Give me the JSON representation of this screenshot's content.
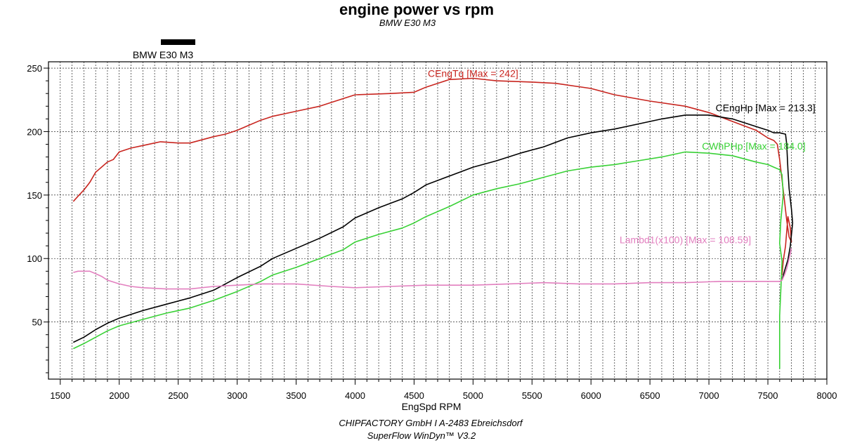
{
  "chart_data": {
    "type": "line",
    "title": "engine power vs rpm",
    "subtitle": "BMW E30 M3",
    "legend": {
      "entries": [
        "BMW E30 M3"
      ],
      "placement": "top-left"
    },
    "xlabel": "EngSpd RPM",
    "ylabel": "",
    "xlim": [
      1400,
      8000
    ],
    "ylim": [
      5,
      255
    ],
    "x_ticks": [
      1500,
      2000,
      2500,
      3000,
      3500,
      4000,
      4500,
      5000,
      5500,
      6000,
      6500,
      7000,
      7500,
      8000
    ],
    "y_ticks": [
      50,
      100,
      150,
      200,
      250
    ],
    "grid": true,
    "series": [
      {
        "name": "CEngTq [Max = 242]",
        "color": "#c8251f",
        "points": [
          [
            1610,
            145
          ],
          [
            1650,
            149
          ],
          [
            1700,
            154
          ],
          [
            1750,
            160
          ],
          [
            1800,
            168
          ],
          [
            1850,
            172
          ],
          [
            1900,
            176
          ],
          [
            1950,
            178
          ],
          [
            2000,
            184
          ],
          [
            2100,
            187
          ],
          [
            2200,
            189
          ],
          [
            2300,
            191
          ],
          [
            2350,
            192
          ],
          [
            2500,
            191
          ],
          [
            2600,
            191
          ],
          [
            2800,
            196
          ],
          [
            2900,
            198
          ],
          [
            3000,
            201
          ],
          [
            3100,
            205
          ],
          [
            3200,
            209
          ],
          [
            3300,
            212
          ],
          [
            3500,
            216
          ],
          [
            3700,
            220
          ],
          [
            3900,
            226
          ],
          [
            4000,
            229
          ],
          [
            4300,
            230
          ],
          [
            4500,
            231
          ],
          [
            4600,
            235
          ],
          [
            4700,
            238
          ],
          [
            4800,
            241
          ],
          [
            5000,
            242
          ],
          [
            5200,
            240
          ],
          [
            5500,
            239
          ],
          [
            5700,
            238
          ],
          [
            6000,
            234
          ],
          [
            6200,
            229
          ],
          [
            6500,
            224
          ],
          [
            6800,
            220
          ],
          [
            7000,
            215
          ],
          [
            7200,
            208
          ],
          [
            7400,
            201
          ],
          [
            7500,
            195
          ],
          [
            7550,
            193
          ],
          [
            7580,
            190
          ],
          [
            7600,
            178
          ],
          [
            7620,
            162
          ],
          [
            7640,
            146
          ],
          [
            7660,
            130
          ],
          [
            7680,
            117
          ],
          [
            7700,
            113
          ],
          [
            7690,
            124
          ],
          [
            7670,
            133
          ],
          [
            7650,
            110
          ],
          [
            7630,
            98
          ],
          [
            7620,
            87
          ]
        ]
      },
      {
        "name": "CEngHp [Max = 213.3]",
        "color": "#000000",
        "points": [
          [
            1610,
            34
          ],
          [
            1700,
            38
          ],
          [
            1800,
            44
          ],
          [
            1900,
            49
          ],
          [
            2000,
            53
          ],
          [
            2200,
            59
          ],
          [
            2400,
            64
          ],
          [
            2600,
            69
          ],
          [
            2800,
            75
          ],
          [
            3000,
            85
          ],
          [
            3200,
            94
          ],
          [
            3300,
            100
          ],
          [
            3500,
            108
          ],
          [
            3700,
            116
          ],
          [
            3900,
            125
          ],
          [
            4000,
            132
          ],
          [
            4200,
            140
          ],
          [
            4400,
            147
          ],
          [
            4500,
            152
          ],
          [
            4600,
            158
          ],
          [
            4800,
            165
          ],
          [
            5000,
            172
          ],
          [
            5200,
            177
          ],
          [
            5400,
            183
          ],
          [
            5600,
            188
          ],
          [
            5800,
            195
          ],
          [
            6000,
            199
          ],
          [
            6200,
            202
          ],
          [
            6400,
            206
          ],
          [
            6600,
            210
          ],
          [
            6800,
            213
          ],
          [
            7000,
            213
          ],
          [
            7200,
            210
          ],
          [
            7400,
            204
          ],
          [
            7500,
            201
          ],
          [
            7550,
            199
          ],
          [
            7600,
            199
          ],
          [
            7650,
            198
          ],
          [
            7660,
            190
          ],
          [
            7670,
            170
          ],
          [
            7680,
            155
          ],
          [
            7700,
            139
          ],
          [
            7710,
            128
          ],
          [
            7690,
            110
          ],
          [
            7670,
            99
          ],
          [
            7640,
            90
          ],
          [
            7620,
            83
          ]
        ]
      },
      {
        "name": "CWhPHp [Max = 184.0]",
        "color": "#39d136",
        "points": [
          [
            1610,
            29
          ],
          [
            1700,
            33
          ],
          [
            1800,
            38
          ],
          [
            1900,
            43
          ],
          [
            2000,
            47
          ],
          [
            2200,
            52
          ],
          [
            2400,
            57
          ],
          [
            2600,
            61
          ],
          [
            2800,
            67
          ],
          [
            3000,
            74
          ],
          [
            3200,
            82
          ],
          [
            3300,
            87
          ],
          [
            3500,
            93
          ],
          [
            3700,
            100
          ],
          [
            3900,
            107
          ],
          [
            4000,
            113
          ],
          [
            4200,
            119
          ],
          [
            4400,
            124
          ],
          [
            4500,
            128
          ],
          [
            4600,
            133
          ],
          [
            4800,
            141
          ],
          [
            5000,
            150
          ],
          [
            5200,
            155
          ],
          [
            5400,
            159
          ],
          [
            5600,
            164
          ],
          [
            5800,
            169
          ],
          [
            6000,
            172
          ],
          [
            6200,
            174
          ],
          [
            6400,
            177
          ],
          [
            6600,
            180
          ],
          [
            6800,
            184
          ],
          [
            7000,
            183
          ],
          [
            7200,
            181
          ],
          [
            7400,
            176
          ],
          [
            7500,
            174
          ],
          [
            7550,
            172
          ],
          [
            7600,
            170
          ],
          [
            7620,
            166
          ],
          [
            7630,
            150
          ],
          [
            7610,
            130
          ],
          [
            7600,
            112
          ],
          [
            7620,
            98
          ],
          [
            7610,
            75
          ],
          [
            7600,
            55
          ],
          [
            7600,
            30
          ],
          [
            7600,
            13
          ]
        ]
      },
      {
        "name": "Lambd1(x100) [Max = 108.59]",
        "color": "#e27fbf",
        "points": [
          [
            1610,
            89
          ],
          [
            1650,
            90
          ],
          [
            1700,
            90
          ],
          [
            1750,
            90
          ],
          [
            1800,
            88
          ],
          [
            1850,
            86
          ],
          [
            1900,
            83
          ],
          [
            2000,
            80
          ],
          [
            2100,
            78
          ],
          [
            2200,
            77
          ],
          [
            2400,
            76
          ],
          [
            2600,
            76
          ],
          [
            2800,
            78
          ],
          [
            3000,
            79
          ],
          [
            3200,
            80
          ],
          [
            3500,
            80
          ],
          [
            3800,
            78
          ],
          [
            4000,
            77
          ],
          [
            4300,
            78
          ],
          [
            4600,
            79
          ],
          [
            4800,
            79
          ],
          [
            5000,
            79
          ],
          [
            5300,
            80
          ],
          [
            5600,
            81
          ],
          [
            5900,
            80
          ],
          [
            6200,
            80
          ],
          [
            6500,
            81
          ],
          [
            6800,
            81
          ],
          [
            7100,
            82
          ],
          [
            7400,
            82
          ],
          [
            7600,
            82
          ],
          [
            7620,
            83
          ],
          [
            7640,
            87
          ],
          [
            7660,
            92
          ],
          [
            7680,
            100
          ],
          [
            7700,
            108
          ]
        ]
      }
    ],
    "annotations": [
      {
        "series": "CEngTq [Max = 242]",
        "text": "CEngTq [Max = 242]",
        "x": 5000,
        "y": 243
      },
      {
        "series": "CEngHp [Max = 213.3]",
        "text": "CEngHp [Max = 213.3]",
        "x": 7480,
        "y": 216
      },
      {
        "series": "CWhPHp [Max = 184.0]",
        "text": "CWhPHp [Max = 184.0]",
        "x": 7380,
        "y": 186
      },
      {
        "series": "Lambd1(x100) [Max = 108.59]",
        "text": "Lambd1(x100) [Max = 108.59]",
        "x": 6800,
        "y": 112
      }
    ]
  },
  "footer": {
    "line1": "CHIPFACTORY GmbH I A-2483 Ebreichsdorf",
    "line2": "SuperFlow WinDyn™ V3.2"
  }
}
